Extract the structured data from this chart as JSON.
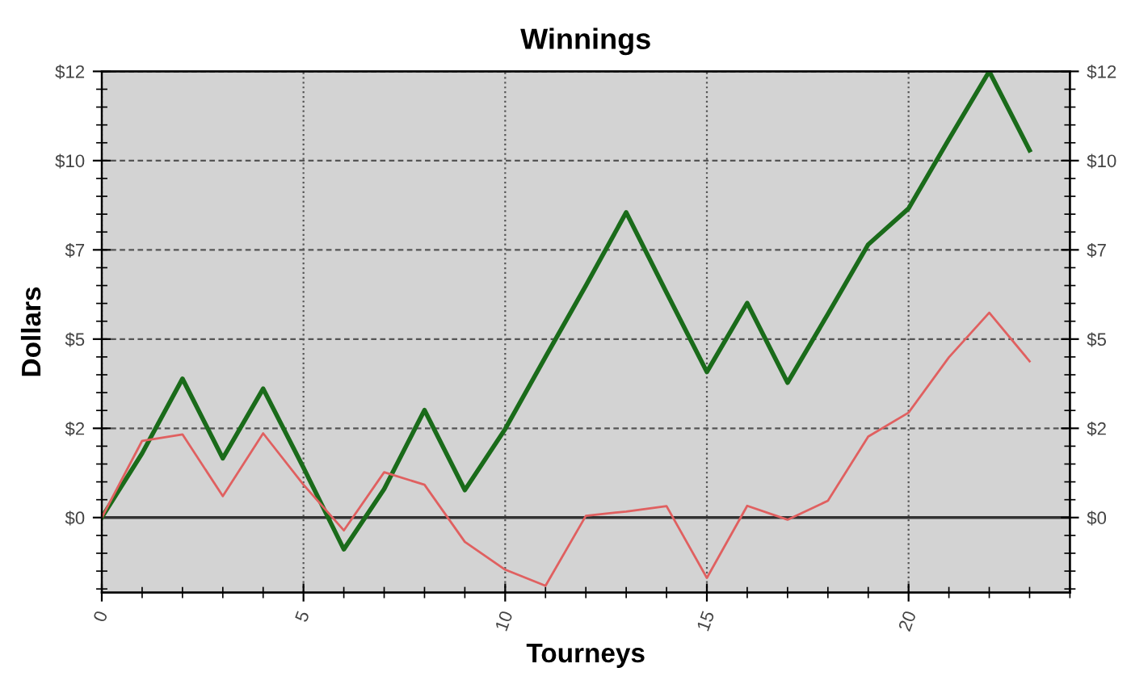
{
  "chart_data": {
    "type": "line",
    "title": "Winnings",
    "xlabel": "Tourneys",
    "ylabel": "Dollars",
    "x": [
      0,
      1,
      2,
      3,
      4,
      5,
      6,
      7,
      8,
      9,
      10,
      11,
      12,
      13,
      14,
      15,
      16,
      17,
      18,
      19,
      20,
      21,
      22,
      23
    ],
    "series": [
      {
        "color": "#1a6b1a",
        "values": [
          0,
          1.8,
          3.89,
          1.66,
          3.61,
          1.4,
          -0.89,
          0.8,
          3.01,
          0.77,
          2.48,
          4.5,
          6.5,
          8.55,
          6.3,
          4.08,
          6.01,
          3.78,
          5.7,
          7.65,
          8.66,
          10.6,
          12.5,
          10.29
        ]
      },
      {
        "color": "#e06060",
        "values": [
          0,
          2.15,
          2.33,
          0.6,
          2.36,
          0.92,
          -0.36,
          1.27,
          0.92,
          -0.68,
          -1.46,
          -1.91,
          0.05,
          0.17,
          0.32,
          -1.69,
          0.33,
          -0.06,
          0.47,
          2.27,
          2.94,
          4.49,
          5.74,
          4.38
        ]
      }
    ],
    "xlim": [
      0,
      24
    ],
    "xticks": [
      0,
      5,
      10,
      15,
      20
    ],
    "ylim": [
      -2.1,
      12.5
    ],
    "yticks": [
      {
        "value": 0,
        "label": "$0"
      },
      {
        "value": 2.5,
        "label": "$2"
      },
      {
        "value": 5,
        "label": "$5"
      },
      {
        "value": 7.5,
        "label": "$7"
      },
      {
        "value": 10,
        "label": "$10"
      },
      {
        "value": 12.5,
        "label": "$12"
      }
    ],
    "y2lim": [
      -2.1,
      12.5
    ],
    "y2ticks": [
      {
        "value": 0,
        "label": "$0"
      },
      {
        "value": 2.5,
        "label": "$2"
      },
      {
        "value": 5,
        "label": "$5"
      },
      {
        "value": 7.5,
        "label": "$7"
      },
      {
        "value": 10,
        "label": "$10"
      },
      {
        "value": 12.5,
        "label": "$12"
      }
    ],
    "ref_lines": [
      {
        "axis": "y",
        "value": 0,
        "color": "#333333",
        "line_style": "solid"
      }
    ],
    "grid": true,
    "marker": "none",
    "line_style": "solid"
  }
}
